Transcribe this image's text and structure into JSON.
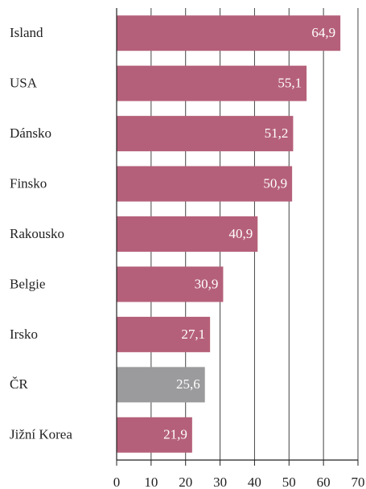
{
  "chart_data": {
    "type": "barh",
    "categories": [
      "Island",
      "USA",
      "Dánsko",
      "Finsko",
      "Rakousko",
      "Belgie",
      "Irsko",
      "ČR",
      "Jižní Korea"
    ],
    "values": [
      64.9,
      55.1,
      51.2,
      50.9,
      40.9,
      30.9,
      27.1,
      25.6,
      21.9
    ],
    "value_labels": [
      "64,9",
      "55,1",
      "51,2",
      "50,9",
      "40,9",
      "30,9",
      "27,1",
      "25,6",
      "21,9"
    ],
    "colors": [
      "#b5607a",
      "#b5607a",
      "#b5607a",
      "#b5607a",
      "#b5607a",
      "#b5607a",
      "#b5607a",
      "#9b9b9d",
      "#b5607a"
    ],
    "xlim": [
      0,
      70
    ],
    "xticks": [
      0,
      10,
      20,
      30,
      40,
      50,
      60,
      70
    ],
    "grid": true
  }
}
